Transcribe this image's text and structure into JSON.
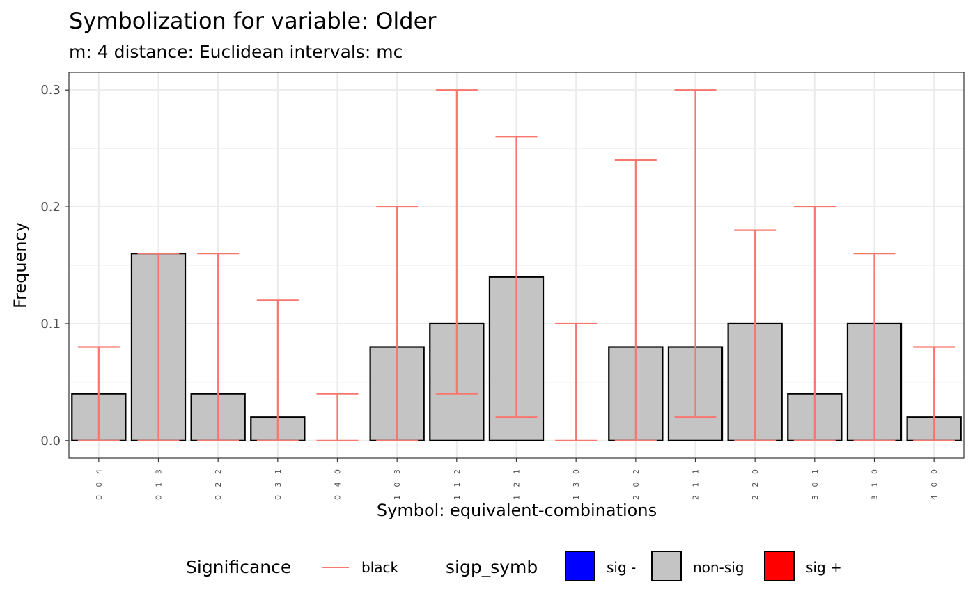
{
  "chart_data": {
    "type": "bar",
    "title": "Symbolization for variable: Older",
    "subtitle": "m: 4  distance:  Euclidean  intervals:  mc",
    "xlabel": "Symbol: equivalent-combinations",
    "ylabel": "Frequency",
    "ylim": [
      -0.015,
      0.315
    ],
    "yticks": [
      0.0,
      0.1,
      0.2,
      0.3
    ],
    "ytick_labels": [
      "0.0",
      "0.1",
      "0.2",
      "0.3"
    ],
    "grid": true,
    "categories": [
      "0 0 4",
      "0 1 3",
      "0 2 2",
      "0 3 1",
      "0 4 0",
      "1 0 3",
      "1 1 2",
      "1 2 1",
      "1 3 0",
      "2 0 2",
      "2 1 1",
      "2 2 0",
      "3 0 1",
      "3 1 0",
      "4 0 0"
    ],
    "values": [
      0.04,
      0.16,
      0.04,
      0.02,
      0.0,
      0.08,
      0.1,
      0.14,
      0.0,
      0.08,
      0.08,
      0.1,
      0.04,
      0.1,
      0.02
    ],
    "error_lower": [
      0.0,
      0.0,
      0.0,
      0.0,
      0.0,
      0.0,
      0.04,
      0.02,
      0.0,
      0.0,
      0.02,
      0.0,
      0.0,
      0.0,
      0.0
    ],
    "error_upper": [
      0.08,
      0.16,
      0.16,
      0.12,
      0.04,
      0.2,
      0.3,
      0.26,
      0.1,
      0.24,
      0.3,
      0.18,
      0.2,
      0.16,
      0.08
    ],
    "legend_position": "bottom",
    "legend": {
      "significance": {
        "title": "Significance",
        "items": [
          {
            "label": "black",
            "color": "#F8766D"
          }
        ]
      },
      "sigp_symb": {
        "title": "sigp_symb",
        "items": [
          {
            "label": "sig -",
            "color": "#0000FF"
          },
          {
            "label": "non-sig",
            "color": "#C4C4C4"
          },
          {
            "label": "sig +",
            "color": "#FF0000"
          }
        ]
      }
    },
    "colors": {
      "bar_fill": "#C4C4C4",
      "bar_stroke": "#000000",
      "errorbar": "#F8766D",
      "grid": "#EBEBEB"
    }
  }
}
